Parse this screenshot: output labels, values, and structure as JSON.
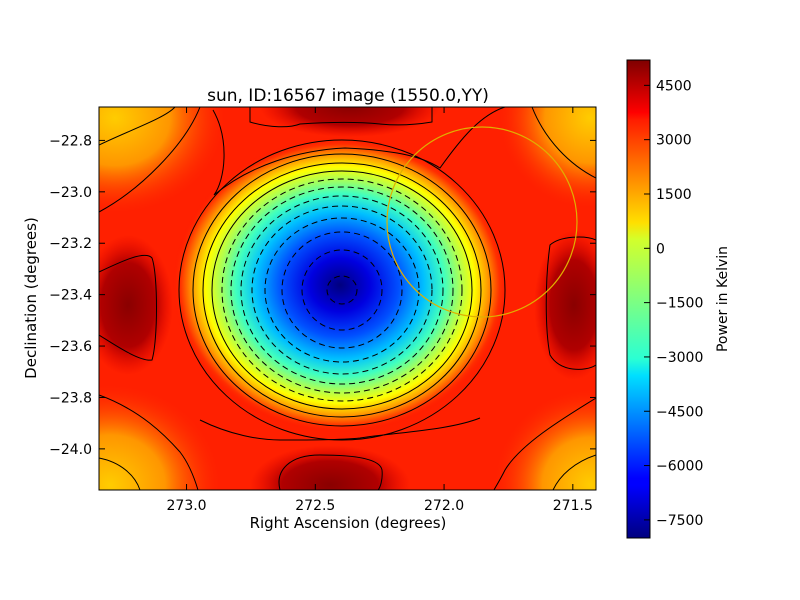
{
  "chart_data": {
    "type": "heatmap",
    "title": "sun, ID:16567 image (1550.0,YY)",
    "xlabel": "Right Ascension (degrees)",
    "ylabel": "Declination (degrees)",
    "xlim": [
      273.34,
      271.41
    ],
    "ylim": [
      -24.16,
      -22.67
    ],
    "x_ticks": [
      273.0,
      272.5,
      272.0,
      271.5
    ],
    "x_tick_labels": [
      "273.0",
      "272.5",
      "272.0",
      "271.5"
    ],
    "y_ticks": [
      -22.8,
      -23.0,
      -23.2,
      -23.4,
      -23.6,
      -23.8,
      -24.0
    ],
    "y_tick_labels": [
      "−22.8",
      "−23.0",
      "−23.2",
      "−23.4",
      "−23.6",
      "−23.8",
      "−24.0"
    ],
    "colorbar": {
      "label": "Power in Kelvin",
      "range": [
        -8000,
        5200
      ],
      "ticks": [
        4500,
        3000,
        1500,
        0,
        -1500,
        -3000,
        -4500,
        -6000,
        -7500
      ],
      "tick_labels": [
        "4500",
        "3000",
        "1500",
        "0",
        "−1500",
        "−3000",
        "−4500",
        "−6000",
        "−7500"
      ],
      "colormap": "jet"
    },
    "features": {
      "minimum": {
        "ra": 272.37,
        "dec": -23.39,
        "value": -7800
      },
      "contours_negative_style": "dashed",
      "contours_positive_style": "solid",
      "sun_circle": {
        "ra_center": 271.84,
        "dec_center": -23.13,
        "radius_deg": 0.38,
        "color": "#e0b000"
      }
    },
    "grid": false
  }
}
